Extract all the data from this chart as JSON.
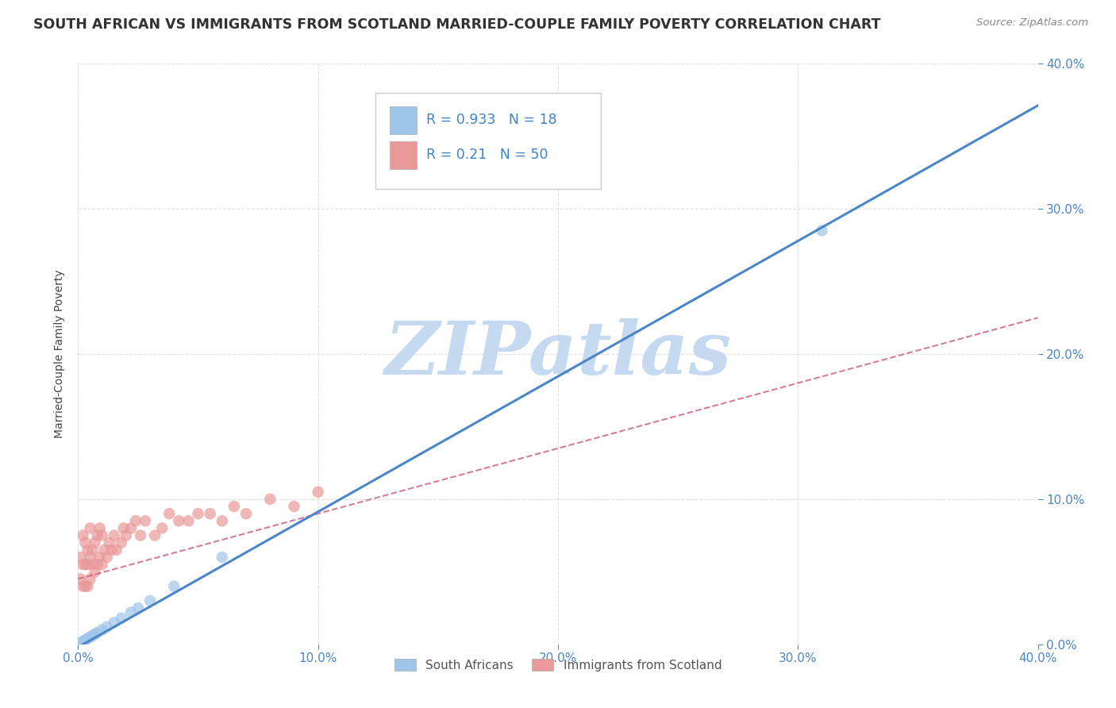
{
  "title": "SOUTH AFRICAN VS IMMIGRANTS FROM SCOTLAND MARRIED-COUPLE FAMILY POVERTY CORRELATION CHART",
  "source": "Source: ZipAtlas.com",
  "ylabel": "Married-Couple Family Poverty",
  "xlim": [
    0.0,
    0.4
  ],
  "ylim": [
    0.0,
    0.4
  ],
  "xticks": [
    0.0,
    0.1,
    0.2,
    0.3,
    0.4
  ],
  "yticks": [
    0.0,
    0.1,
    0.2,
    0.3,
    0.4
  ],
  "blue_scatter_color": "#9fc5e8",
  "pink_scatter_color": "#ea9999",
  "blue_line_color": "#4a86c8",
  "pink_line_color": "#cc6688",
  "axis_color": "#4a86c8",
  "R_blue": 0.933,
  "N_blue": 18,
  "R_pink": 0.21,
  "N_pink": 50,
  "blue_x": [
    0.001,
    0.002,
    0.003,
    0.004,
    0.005,
    0.006,
    0.007,
    0.008,
    0.01,
    0.012,
    0.015,
    0.018,
    0.022,
    0.025,
    0.03,
    0.04,
    0.06,
    0.31
  ],
  "blue_y": [
    0.001,
    0.002,
    0.003,
    0.004,
    0.005,
    0.006,
    0.007,
    0.008,
    0.01,
    0.012,
    0.015,
    0.018,
    0.022,
    0.025,
    0.03,
    0.04,
    0.06,
    0.285
  ],
  "pink_x": [
    0.001,
    0.001,
    0.002,
    0.002,
    0.002,
    0.003,
    0.003,
    0.003,
    0.004,
    0.004,
    0.004,
    0.005,
    0.005,
    0.005,
    0.006,
    0.006,
    0.007,
    0.007,
    0.008,
    0.008,
    0.009,
    0.009,
    0.01,
    0.01,
    0.011,
    0.012,
    0.013,
    0.014,
    0.015,
    0.016,
    0.018,
    0.019,
    0.02,
    0.022,
    0.024,
    0.026,
    0.028,
    0.032,
    0.035,
    0.038,
    0.042,
    0.046,
    0.05,
    0.055,
    0.06,
    0.065,
    0.07,
    0.08,
    0.09,
    0.1
  ],
  "pink_y": [
    0.045,
    0.06,
    0.04,
    0.055,
    0.075,
    0.04,
    0.055,
    0.07,
    0.04,
    0.055,
    0.065,
    0.045,
    0.06,
    0.08,
    0.055,
    0.065,
    0.05,
    0.07,
    0.055,
    0.075,
    0.06,
    0.08,
    0.055,
    0.075,
    0.065,
    0.06,
    0.07,
    0.065,
    0.075,
    0.065,
    0.07,
    0.08,
    0.075,
    0.08,
    0.085,
    0.075,
    0.085,
    0.075,
    0.08,
    0.09,
    0.085,
    0.085,
    0.09,
    0.09,
    0.085,
    0.095,
    0.09,
    0.1,
    0.095,
    0.105
  ],
  "watermark_color": "#c5d9f1",
  "bg_color": "#ffffff",
  "grid_color": "#dddddd",
  "legend_text_color": "#3d85c8"
}
